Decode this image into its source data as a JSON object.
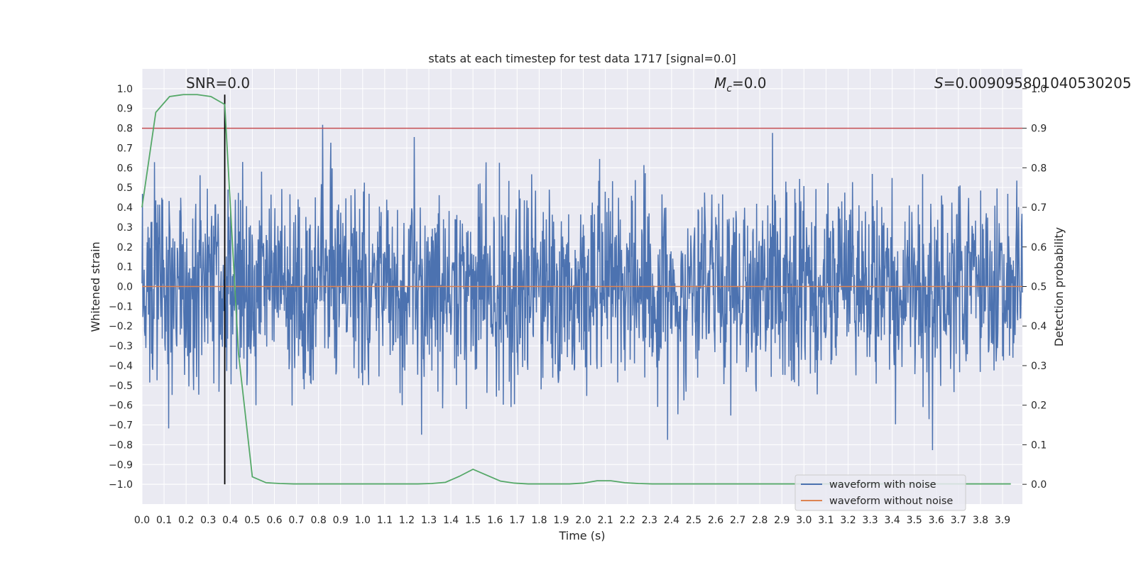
{
  "chart_data": {
    "type": "line",
    "title": "stats at each timestep for test data 1717 [signal=0.0]",
    "xlabel": "Time (s)",
    "ylabel": "Whitened strain",
    "y2label": "Detection probability",
    "xlim": [
      0.0,
      3.99
    ],
    "ylim": [
      -1.1,
      1.1
    ],
    "y2lim": [
      -0.05,
      1.05
    ],
    "x_ticks": [
      0.0,
      0.1,
      0.2,
      0.3,
      0.4,
      0.5,
      0.6,
      0.7,
      0.8,
      0.9,
      1.0,
      1.1,
      1.2,
      1.3,
      1.4,
      1.5,
      1.6,
      1.7,
      1.8,
      1.9,
      2.0,
      2.1,
      2.2,
      2.3,
      2.4,
      2.5,
      2.6,
      2.7,
      2.8,
      2.9,
      3.0,
      3.1,
      3.2,
      3.3,
      3.4,
      3.5,
      3.6,
      3.7,
      3.8,
      3.9
    ],
    "x_tick_labels": [
      "0.0",
      "0.1",
      "0.2",
      "0.3",
      "0.4",
      "0.5",
      "0.6",
      "0.7",
      "0.8",
      "0.9",
      "1.0",
      "1.1",
      "1.2",
      "1.3",
      "1.4",
      "1.5",
      "1.6",
      "1.7",
      "1.8",
      "1.9",
      "2.0",
      "2.1",
      "2.2",
      "2.3",
      "2.4",
      "2.5",
      "2.6",
      "2.7",
      "2.8",
      "2.9",
      "3.0",
      "3.1",
      "3.2",
      "3.3",
      "3.4",
      "3.5",
      "3.6",
      "3.7",
      "3.8",
      "3.9"
    ],
    "y_ticks": [
      1.0,
      0.9,
      0.8,
      0.7,
      0.6,
      0.5,
      0.4,
      0.3,
      0.2,
      0.1,
      0.0,
      -0.1,
      -0.2,
      -0.3,
      -0.4,
      -0.5,
      -0.6,
      -0.7,
      -0.8,
      -0.9,
      -1.0
    ],
    "y_tick_labels": [
      "1.0",
      "0.9",
      "0.8",
      "0.7",
      "0.6",
      "0.5",
      "0.4",
      "0.3",
      "0.2",
      "0.1",
      "0.0",
      "−0.1",
      "−0.2",
      "−0.3",
      "−0.4",
      "−0.5",
      "−0.6",
      "−0.7",
      "−0.8",
      "−0.9",
      "−1.0"
    ],
    "y2_ticks": [
      0.0,
      0.1,
      0.2,
      0.3,
      0.4,
      0.5,
      0.6,
      0.7,
      0.8,
      0.9,
      1.0
    ],
    "y2_tick_labels": [
      "0.0",
      "0.1",
      "0.2",
      "0.3",
      "0.4",
      "0.5",
      "0.6",
      "0.7",
      "0.8",
      "0.9",
      "1.0"
    ],
    "noise_series": {
      "name": "waveform with noise",
      "color": "#4c72b0",
      "n_samples": 2048,
      "seed": 1717,
      "typical_amplitude": 0.38,
      "peak_amplitude": 0.97
    },
    "clean_series": {
      "name": "waveform without noise",
      "color": "#dd8452",
      "value": 0.0
    },
    "probability_series": {
      "name": "Detection probability",
      "color": "#55a868",
      "x": [
        0.0,
        0.0625,
        0.125,
        0.1875,
        0.25,
        0.3125,
        0.375,
        0.4375,
        0.5,
        0.5625,
        0.625,
        0.6875,
        0.75,
        0.8125,
        0.875,
        0.9375,
        1.0,
        1.0625,
        1.125,
        1.1875,
        1.25,
        1.3125,
        1.375,
        1.4375,
        1.5,
        1.5625,
        1.625,
        1.6875,
        1.75,
        1.8125,
        1.875,
        1.9375,
        2.0,
        2.0625,
        2.125,
        2.1875,
        2.25,
        2.3125,
        2.375,
        2.4375,
        2.5,
        2.5625,
        2.625,
        2.6875,
        2.75,
        2.8125,
        2.875,
        2.9375,
        3.0,
        3.0625,
        3.125,
        3.1875,
        3.25,
        3.3125,
        3.375,
        3.4375,
        3.5,
        3.5625,
        3.625,
        3.6875,
        3.75,
        3.8125,
        3.875,
        3.9375
      ],
      "values": [
        0.7,
        0.94,
        0.98,
        0.985,
        0.985,
        0.98,
        0.96,
        0.33,
        0.019,
        0.004,
        0.002,
        0.001,
        0.001,
        0.001,
        0.001,
        0.001,
        0.001,
        0.001,
        0.001,
        0.001,
        0.001,
        0.002,
        0.005,
        0.02,
        0.038,
        0.023,
        0.008,
        0.003,
        0.001,
        0.001,
        0.001,
        0.001,
        0.003,
        0.009,
        0.009,
        0.004,
        0.002,
        0.001,
        0.001,
        0.001,
        0.001,
        0.001,
        0.001,
        0.001,
        0.001,
        0.001,
        0.001,
        0.001,
        0.001,
        0.001,
        0.001,
        0.001,
        0.001,
        0.001,
        0.001,
        0.001,
        0.001,
        0.001,
        0.001,
        0.001,
        0.001,
        0.001,
        0.001,
        0.001
      ]
    },
    "threshold_line": {
      "value": 0.9,
      "axis": "y2",
      "color": "#c44e52"
    },
    "vertical_marker": {
      "x": 0.375,
      "color": "#000000"
    },
    "annotations": {
      "snr": "SNR=0.0",
      "mc_symbol": "M",
      "mc_subscript": "c",
      "mc_value": "=0.0",
      "s_symbol": "S",
      "s_value": "=0.009095801040530205"
    },
    "legend": {
      "position": "lower-right",
      "entries": [
        {
          "label": "waveform with noise",
          "color": "#4c72b0"
        },
        {
          "label": "waveform without noise",
          "color": "#dd8452"
        }
      ]
    },
    "grid": true,
    "plot_background": "#eaeaf2",
    "grid_color": "#ffffff"
  }
}
